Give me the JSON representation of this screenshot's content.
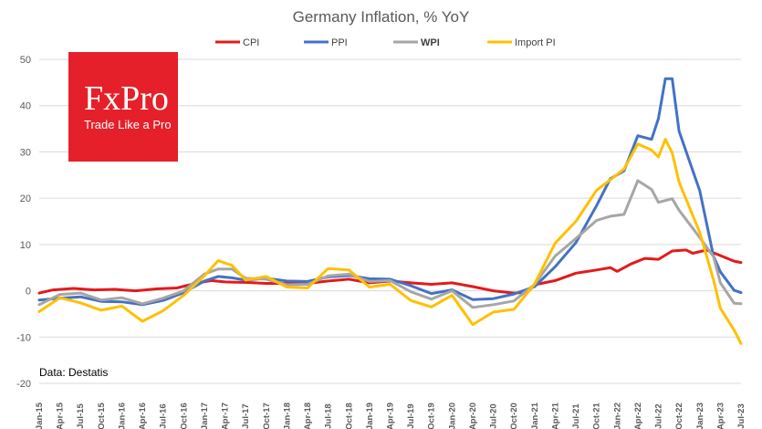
{
  "logo": {
    "brand": "FxPro",
    "tagline": "Trade Like a Pro",
    "bg_color": "#e5202a"
  },
  "source": "Data: Destatis",
  "chart_data": {
    "type": "line",
    "title": "Germany Inflation, % YoY",
    "xlabel": "",
    "ylabel": "",
    "ylim": [
      -20,
      50
    ],
    "yticks": [
      -20,
      -10,
      0,
      10,
      20,
      30,
      40,
      50
    ],
    "grid": "horizontal",
    "legend_position": "top",
    "x_start": "Jan-15",
    "x_end": "Jul-23",
    "xtick_labels": [
      "Jan-15",
      "Apr-15",
      "Jul-15",
      "Oct-15",
      "Jan-16",
      "Apr-16",
      "Jul-16",
      "Oct-16",
      "Jan-17",
      "Apr-17",
      "Jul-17",
      "Oct-17",
      "Jan-18",
      "Apr-18",
      "Jul-18",
      "Oct-18",
      "Jan-19",
      "Apr-19",
      "Jul-19",
      "Oct-19",
      "Jan-20",
      "Apr-20",
      "Jul-20",
      "Oct-20",
      "Jan-21",
      "Apr-21",
      "Jul-21",
      "Oct-21",
      "Jan-22",
      "Apr-22",
      "Jul-22",
      "Oct-22",
      "Jan-23",
      "Apr-23",
      "Jul-23"
    ],
    "series": [
      {
        "name": "CPI",
        "color": "#e31a1c",
        "bold": false,
        "points": [
          [
            "Jan-15",
            -0.5
          ],
          [
            "Mar-15",
            0.2
          ],
          [
            "Jun-15",
            0.5
          ],
          [
            "Sep-15",
            0.2
          ],
          [
            "Dec-15",
            0.3
          ],
          [
            "Mar-16",
            0.0
          ],
          [
            "Jun-16",
            0.4
          ],
          [
            "Sep-16",
            0.6
          ],
          [
            "Dec-16",
            1.7
          ],
          [
            "Feb-17",
            2.2
          ],
          [
            "Apr-17",
            1.9
          ],
          [
            "Jul-17",
            1.8
          ],
          [
            "Oct-17",
            1.6
          ],
          [
            "Jan-18",
            1.6
          ],
          [
            "Apr-18",
            1.6
          ],
          [
            "Jul-18",
            2.1
          ],
          [
            "Oct-18",
            2.5
          ],
          [
            "Jan-19",
            1.7
          ],
          [
            "Apr-19",
            2.1
          ],
          [
            "Jul-19",
            1.7
          ],
          [
            "Oct-19",
            1.4
          ],
          [
            "Jan-20",
            1.7
          ],
          [
            "Apr-20",
            0.9
          ],
          [
            "Jul-20",
            0.0
          ],
          [
            "Oct-20",
            -0.5
          ],
          [
            "Dec-20",
            -0.3
          ],
          [
            "Jan-21",
            1.3
          ],
          [
            "Apr-21",
            2.2
          ],
          [
            "Jul-21",
            3.8
          ],
          [
            "Oct-21",
            4.5
          ],
          [
            "Dec-21",
            5.0
          ],
          [
            "Jan-22",
            4.2
          ],
          [
            "Mar-22",
            5.8
          ],
          [
            "May-22",
            7.0
          ],
          [
            "Jul-22",
            6.8
          ],
          [
            "Sep-22",
            8.6
          ],
          [
            "Nov-22",
            8.8
          ],
          [
            "Dec-22",
            8.1
          ],
          [
            "Feb-23",
            8.8
          ],
          [
            "Apr-23",
            7.6
          ],
          [
            "Jun-23",
            6.4
          ],
          [
            "Jul-23",
            6.1
          ]
        ]
      },
      {
        "name": "PPI",
        "color": "#4472c4",
        "bold": false,
        "points": [
          [
            "Jan-15",
            -2.0
          ],
          [
            "Apr-15",
            -1.6
          ],
          [
            "Jul-15",
            -1.3
          ],
          [
            "Oct-15",
            -2.3
          ],
          [
            "Jan-16",
            -2.4
          ],
          [
            "Apr-16",
            -3.0
          ],
          [
            "Jul-16",
            -2.1
          ],
          [
            "Oct-16",
            -0.4
          ],
          [
            "Jan-17",
            2.1
          ],
          [
            "Mar-17",
            3.1
          ],
          [
            "May-17",
            2.8
          ],
          [
            "Jul-17",
            2.3
          ],
          [
            "Oct-17",
            2.7
          ],
          [
            "Jan-18",
            2.1
          ],
          [
            "Apr-18",
            2.0
          ],
          [
            "Jul-18",
            3.0
          ],
          [
            "Oct-18",
            3.3
          ],
          [
            "Jan-19",
            2.6
          ],
          [
            "Apr-19",
            2.5
          ],
          [
            "Jul-19",
            1.1
          ],
          [
            "Oct-19",
            -0.6
          ],
          [
            "Jan-20",
            0.2
          ],
          [
            "Apr-20",
            -1.9
          ],
          [
            "Jul-20",
            -1.7
          ],
          [
            "Oct-20",
            -0.7
          ],
          [
            "Jan-21",
            0.9
          ],
          [
            "Apr-21",
            5.2
          ],
          [
            "Jul-21",
            10.4
          ],
          [
            "Oct-21",
            18.4
          ],
          [
            "Dec-21",
            24.2
          ],
          [
            "Feb-22",
            25.9
          ],
          [
            "Apr-22",
            33.5
          ],
          [
            "Jun-22",
            32.7
          ],
          [
            "Jul-22",
            37.2
          ],
          [
            "Aug-22",
            45.8
          ],
          [
            "Sep-22",
            45.8
          ],
          [
            "Oct-22",
            34.5
          ],
          [
            "Jan-23",
            21.6
          ],
          [
            "Mar-23",
            7.5
          ],
          [
            "Apr-23",
            4.1
          ],
          [
            "Jun-23",
            0.1
          ],
          [
            "Jul-23",
            -0.4
          ]
        ]
      },
      {
        "name": "WPI",
        "color": "#a6a6a6",
        "bold": true,
        "points": [
          [
            "Jan-15",
            -3.0
          ],
          [
            "Apr-15",
            -0.8
          ],
          [
            "Jul-15",
            -0.5
          ],
          [
            "Oct-15",
            -2.0
          ],
          [
            "Jan-16",
            -1.5
          ],
          [
            "Apr-16",
            -2.8
          ],
          [
            "Jul-16",
            -1.6
          ],
          [
            "Oct-16",
            0.0
          ],
          [
            "Jan-17",
            3.6
          ],
          [
            "Mar-17",
            4.7
          ],
          [
            "May-17",
            4.7
          ],
          [
            "Jul-17",
            2.7
          ],
          [
            "Oct-17",
            2.5
          ],
          [
            "Jan-18",
            1.3
          ],
          [
            "Apr-18",
            1.4
          ],
          [
            "Jul-18",
            3.2
          ],
          [
            "Oct-18",
            3.6
          ],
          [
            "Jan-19",
            2.0
          ],
          [
            "Apr-19",
            2.2
          ],
          [
            "Jul-19",
            -0.2
          ],
          [
            "Oct-19",
            -1.8
          ],
          [
            "Jan-20",
            0.0
          ],
          [
            "Apr-20",
            -3.6
          ],
          [
            "Jul-20",
            -3.0
          ],
          [
            "Oct-20",
            -2.2
          ],
          [
            "Jan-21",
            1.4
          ],
          [
            "Apr-21",
            7.5
          ],
          [
            "Jul-21",
            11.3
          ],
          [
            "Oct-21",
            15.2
          ],
          [
            "Dec-21",
            16.1
          ],
          [
            "Feb-22",
            16.5
          ],
          [
            "Apr-22",
            23.8
          ],
          [
            "Jun-22",
            21.9
          ],
          [
            "Jul-22",
            19.1
          ],
          [
            "Sep-22",
            19.9
          ],
          [
            "Oct-22",
            17.4
          ],
          [
            "Jan-23",
            11.5
          ],
          [
            "Mar-23",
            7.4
          ],
          [
            "Apr-23",
            1.7
          ],
          [
            "Jun-23",
            -2.7
          ],
          [
            "Jul-23",
            -2.8
          ]
        ]
      },
      {
        "name": "Import PI",
        "color": "#ffc000",
        "bold": false,
        "points": [
          [
            "Jan-15",
            -4.5
          ],
          [
            "Apr-15",
            -1.5
          ],
          [
            "Jul-15",
            -2.6
          ],
          [
            "Oct-15",
            -4.2
          ],
          [
            "Jan-16",
            -3.3
          ],
          [
            "Apr-16",
            -6.6
          ],
          [
            "Jul-16",
            -4.3
          ],
          [
            "Oct-16",
            -1.0
          ],
          [
            "Jan-17",
            3.2
          ],
          [
            "Mar-17",
            6.5
          ],
          [
            "May-17",
            5.5
          ],
          [
            "Jul-17",
            2.3
          ],
          [
            "Oct-17",
            3.1
          ],
          [
            "Jan-18",
            0.8
          ],
          [
            "Apr-18",
            0.6
          ],
          [
            "Jul-18",
            4.8
          ],
          [
            "Oct-18",
            4.5
          ],
          [
            "Jan-19",
            0.8
          ],
          [
            "Apr-19",
            1.4
          ],
          [
            "Jul-19",
            -2.1
          ],
          [
            "Oct-19",
            -3.5
          ],
          [
            "Jan-20",
            -1.0
          ],
          [
            "Apr-20",
            -7.3
          ],
          [
            "Jul-20",
            -4.6
          ],
          [
            "Oct-20",
            -4.0
          ],
          [
            "Jan-21",
            1.5
          ],
          [
            "Apr-21",
            10.3
          ],
          [
            "Jul-21",
            15.0
          ],
          [
            "Oct-21",
            21.7
          ],
          [
            "Dec-21",
            24.0
          ],
          [
            "Feb-22",
            26.3
          ],
          [
            "Apr-22",
            31.7
          ],
          [
            "Jun-22",
            30.4
          ],
          [
            "Jul-22",
            28.9
          ],
          [
            "Aug-22",
            32.7
          ],
          [
            "Sep-22",
            29.8
          ],
          [
            "Oct-22",
            23.5
          ],
          [
            "Jan-23",
            12.6
          ],
          [
            "Mar-23",
            2.4
          ],
          [
            "Apr-23",
            -3.8
          ],
          [
            "Jun-23",
            -8.5
          ],
          [
            "Jul-23",
            -11.4
          ]
        ]
      }
    ]
  }
}
